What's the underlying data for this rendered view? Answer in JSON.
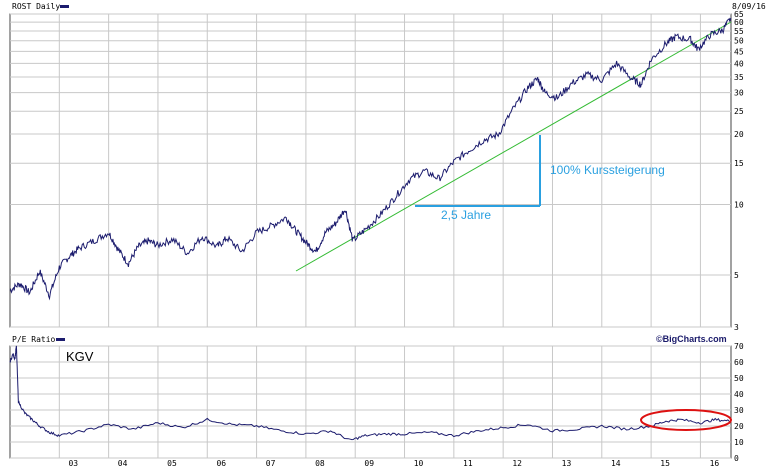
{
  "header": {
    "symbol_label": "ROST Daily",
    "date_label": "8/09/16",
    "pe_label": "P/E Ratio",
    "brand": "©BigCharts.com",
    "kgv_label": "KGV"
  },
  "annotations": {
    "years_label": "2,5 Jahre",
    "gain_label": "100% Kurssteigerung"
  },
  "colors": {
    "price_line": "#1c1c6e",
    "trend_line": "#33bb33",
    "annotation": "#2aa0e0",
    "highlight_ellipse": "#dd1111",
    "grid": "#c8c8c8"
  },
  "chart_data": [
    {
      "type": "line",
      "name": "price",
      "scale": "log",
      "ylim": [
        3,
        65
      ],
      "yticks": [
        3,
        5,
        10,
        15,
        20,
        25,
        30,
        35,
        40,
        45,
        50,
        55,
        60,
        65
      ],
      "xticks": [
        "03",
        "04",
        "05",
        "06",
        "07",
        "08",
        "09",
        "10",
        "11",
        "12",
        "13",
        "14",
        "15",
        "16"
      ],
      "xlim": [
        2002.0,
        2016.62
      ],
      "series": [
        {
          "x": [
            2002.0,
            2002.2,
            2002.4,
            2002.6,
            2002.8,
            2003.0,
            2003.2,
            2003.4,
            2003.7,
            2004.0,
            2004.2,
            2004.4,
            2004.6,
            2004.8,
            2005.0,
            2005.3,
            2005.6,
            2005.9,
            2006.2,
            2006.4,
            2006.7,
            2007.0,
            2007.3,
            2007.6,
            2007.8,
            2008.0,
            2008.2,
            2008.4,
            2008.6,
            2008.8,
            2008.95,
            2009.2,
            2009.5,
            2009.8,
            2010.1,
            2010.4,
            2010.7,
            2011.0,
            2011.3,
            2011.6,
            2011.9,
            2012.2,
            2012.5,
            2012.7,
            2012.85,
            2013.1,
            2013.4,
            2013.7,
            2014.0,
            2014.3,
            2014.6,
            2014.8,
            2015.0,
            2015.3,
            2015.5,
            2015.8,
            2015.95,
            2016.2,
            2016.45,
            2016.62
          ],
          "y": [
            4.3,
            4.6,
            4.2,
            5.2,
            4.1,
            5.4,
            6.0,
            6.5,
            7.0,
            7.6,
            6.4,
            5.6,
            6.6,
            7.0,
            6.7,
            7.1,
            6.2,
            7.3,
            6.6,
            7.2,
            6.3,
            7.6,
            8.1,
            8.8,
            7.7,
            6.9,
            6.3,
            7.6,
            8.3,
            9.6,
            7.0,
            7.8,
            9.0,
            10.7,
            12.8,
            13.9,
            12.9,
            15.2,
            17.0,
            18.8,
            19.9,
            25.5,
            31.5,
            34.5,
            30.0,
            28.5,
            33.0,
            35.8,
            34.0,
            40.0,
            34.5,
            32.5,
            41.5,
            48.5,
            52.0,
            50.5,
            46.0,
            53.0,
            55.5,
            62.5
          ]
        }
      ]
    },
    {
      "type": "line",
      "name": "pe",
      "ylim": [
        0,
        70
      ],
      "yticks": [
        0,
        10,
        20,
        30,
        40,
        50,
        60,
        70
      ],
      "xticks": [
        "03",
        "04",
        "05",
        "06",
        "07",
        "08",
        "09",
        "10",
        "11",
        "12",
        "13",
        "14",
        "15",
        "16"
      ],
      "xlim": [
        2002.0,
        2016.62
      ],
      "series": [
        {
          "x": [
            2002.0,
            2002.06,
            2002.1,
            2002.13,
            2002.17,
            2002.3,
            2002.45,
            2002.6,
            2002.8,
            2003.0,
            2003.5,
            2004.0,
            2004.5,
            2005.0,
            2005.5,
            2006.0,
            2006.5,
            2007.0,
            2007.5,
            2008.0,
            2008.5,
            2008.9,
            2009.2,
            2009.6,
            2010.0,
            2010.5,
            2011.0,
            2011.5,
            2012.0,
            2012.5,
            2013.0,
            2013.5,
            2014.0,
            2014.5,
            2015.0,
            2015.3,
            2015.6,
            2016.0,
            2016.3,
            2016.62
          ],
          "y": [
            60,
            65,
            62,
            70,
            35,
            28,
            24,
            20,
            16,
            14,
            17,
            21,
            18,
            22,
            19,
            24,
            21,
            20,
            17,
            15,
            17,
            11,
            14,
            15,
            15,
            16,
            14,
            17,
            19,
            21,
            17,
            18,
            20,
            18,
            20,
            23,
            24,
            22,
            24,
            23
          ]
        }
      ]
    }
  ]
}
